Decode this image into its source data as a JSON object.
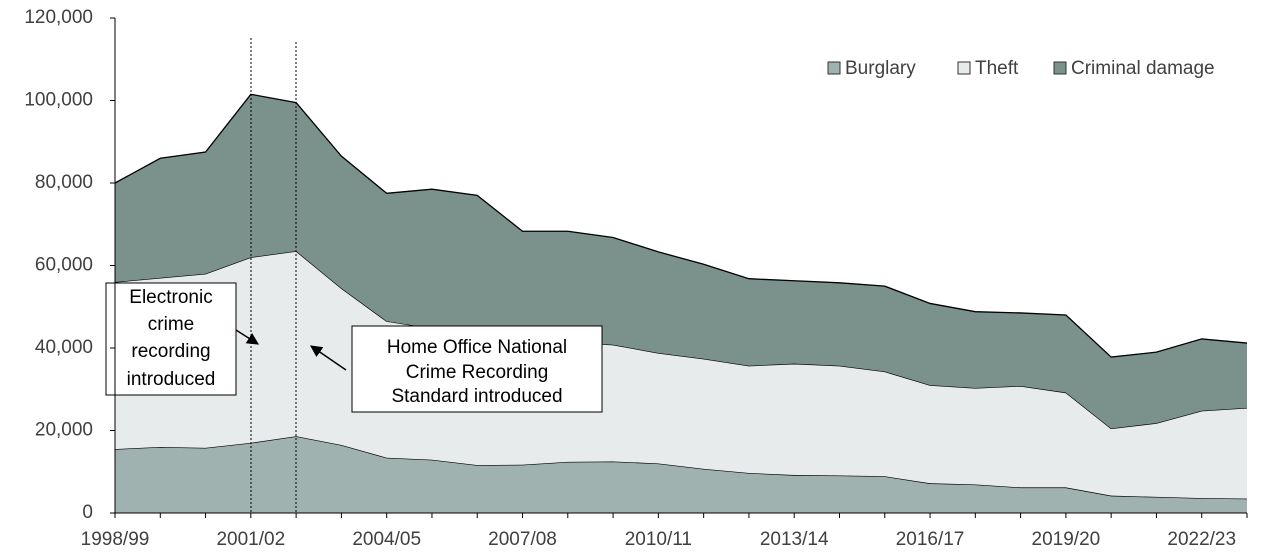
{
  "chart_data": {
    "type": "stacked-area",
    "categories": [
      "1998/99",
      null,
      null,
      "2001/02",
      null,
      null,
      "2004/05",
      null,
      null,
      "2007/08",
      null,
      null,
      "2010/11",
      null,
      null,
      "2013/14",
      null,
      null,
      "2016/17",
      null,
      null,
      "2019/20",
      null,
      null,
      "2022/23",
      null
    ],
    "series": [
      {
        "name": "Burglary",
        "color": "#a0b2af",
        "values": [
          15500,
          16000,
          15800,
          17000,
          18600,
          16500,
          13400,
          12900,
          11600,
          11700,
          12400,
          12500,
          12000,
          10700,
          9700,
          9200,
          9100,
          8900,
          7200,
          6900,
          6200,
          6200,
          4200,
          3900,
          3600,
          3500
        ]
      },
      {
        "name": "Theft",
        "color": "#e8ebeb",
        "values": [
          40500,
          41000,
          42200,
          45000,
          44900,
          38000,
          33100,
          31900,
          31900,
          30800,
          29100,
          28300,
          26800,
          26700,
          26000,
          27000,
          26600,
          25400,
          23800,
          23400,
          24600,
          23000,
          16300,
          17900,
          21200,
          22000
        ]
      },
      {
        "name": "Criminal damage",
        "color": "#7a918c",
        "values": [
          24000,
          29000,
          29500,
          39500,
          36000,
          32000,
          31000,
          33700,
          33500,
          25800,
          26800,
          26000,
          24500,
          22900,
          21100,
          20100,
          20100,
          20700,
          19800,
          18500,
          17700,
          18800,
          17300,
          17200,
          17400,
          15700
        ]
      }
    ],
    "ylim": [
      0,
      120000
    ],
    "yticks": [
      0,
      {
        "value": 20000,
        "label": "20,000"
      },
      {
        "value": 40000,
        "label": "40,000"
      },
      {
        "value": 60000,
        "label": "60,000"
      },
      {
        "value": 80000,
        "label": "80,000"
      },
      {
        "value": 100000,
        "label": "100,000"
      },
      {
        "value": 120000,
        "label": "120,000"
      }
    ],
    "legend": "top-right",
    "annotations": [
      {
        "lines": [
          "Electronic",
          "crime",
          "recording",
          "introduced"
        ]
      },
      {
        "lines": [
          "Home Office National",
          "Crime Recording",
          "Standard introduced"
        ]
      }
    ]
  }
}
